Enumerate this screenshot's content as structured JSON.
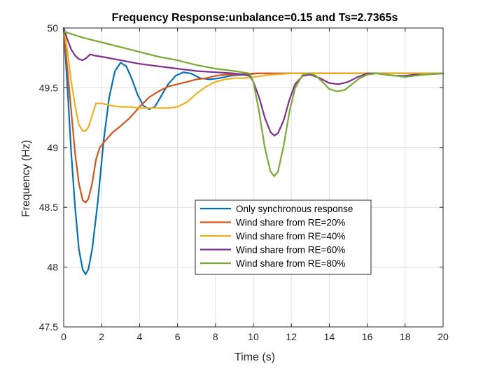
{
  "chart_data": {
    "type": "line",
    "title": "Frequency Response:unbalance=0.15 and Ts=2.7365s",
    "xlabel": "Time (s)",
    "ylabel": "Frequency (Hz)",
    "xlim": [
      0,
      20
    ],
    "ylim": [
      47.5,
      50
    ],
    "xticks": [
      0,
      2,
      4,
      6,
      8,
      10,
      12,
      14,
      16,
      18,
      20
    ],
    "yticks": [
      47.5,
      48,
      48.5,
      49,
      49.5,
      50
    ],
    "xtick_labels": [
      "0",
      "2",
      "4",
      "6",
      "8",
      "10",
      "12",
      "14",
      "16",
      "18",
      "20"
    ],
    "ytick_labels": [
      "47.5",
      "48",
      "48.5",
      "49",
      "49.5",
      "50"
    ],
    "grid": true,
    "legend_position": "center-lower",
    "series": [
      {
        "name": "Only synchronous response",
        "color": "#0072BD",
        "points": [
          [
            0,
            50
          ],
          [
            0.2,
            49.5
          ],
          [
            0.4,
            48.95
          ],
          [
            0.6,
            48.5
          ],
          [
            0.8,
            48.15
          ],
          [
            1.0,
            47.98
          ],
          [
            1.15,
            47.94
          ],
          [
            1.3,
            47.98
          ],
          [
            1.5,
            48.15
          ],
          [
            1.8,
            48.55
          ],
          [
            2.1,
            49.05
          ],
          [
            2.4,
            49.42
          ],
          [
            2.7,
            49.64
          ],
          [
            3.0,
            49.71
          ],
          [
            3.3,
            49.68
          ],
          [
            3.6,
            49.57
          ],
          [
            3.9,
            49.44
          ],
          [
            4.2,
            49.35
          ],
          [
            4.5,
            49.32
          ],
          [
            4.8,
            49.34
          ],
          [
            5.1,
            49.42
          ],
          [
            5.5,
            49.53
          ],
          [
            5.9,
            49.6
          ],
          [
            6.3,
            49.63
          ],
          [
            6.7,
            49.62
          ],
          [
            7.2,
            49.58
          ],
          [
            7.7,
            49.57
          ],
          [
            8.2,
            49.58
          ],
          [
            8.8,
            49.6
          ],
          [
            9.5,
            49.61
          ],
          [
            10.2,
            49.62
          ],
          [
            11,
            49.62
          ],
          [
            12,
            49.62
          ],
          [
            14,
            49.62
          ],
          [
            16,
            49.62
          ],
          [
            18,
            49.62
          ],
          [
            20,
            49.62
          ]
        ]
      },
      {
        "name": "Wind share from RE=20%",
        "color": "#D95319",
        "points": [
          [
            0,
            50
          ],
          [
            0.2,
            49.65
          ],
          [
            0.4,
            49.3
          ],
          [
            0.6,
            48.95
          ],
          [
            0.8,
            48.7
          ],
          [
            1.0,
            48.56
          ],
          [
            1.15,
            48.54
          ],
          [
            1.3,
            48.57
          ],
          [
            1.5,
            48.7
          ],
          [
            1.7,
            48.9
          ],
          [
            1.9,
            49.0
          ],
          [
            2.2,
            49.06
          ],
          [
            2.6,
            49.13
          ],
          [
            3.0,
            49.18
          ],
          [
            3.5,
            49.25
          ],
          [
            4.0,
            49.34
          ],
          [
            4.5,
            49.42
          ],
          [
            5.0,
            49.47
          ],
          [
            5.5,
            49.51
          ],
          [
            6.0,
            49.53
          ],
          [
            6.5,
            49.55
          ],
          [
            7.0,
            49.57
          ],
          [
            7.5,
            49.58
          ],
          [
            8.0,
            49.6
          ],
          [
            8.5,
            49.61
          ],
          [
            9.0,
            49.61
          ],
          [
            10,
            49.62
          ],
          [
            12,
            49.62
          ],
          [
            14,
            49.62
          ],
          [
            16,
            49.62
          ],
          [
            18,
            49.62
          ],
          [
            20,
            49.62
          ]
        ]
      },
      {
        "name": "Wind share from RE=40%",
        "color": "#EDB120",
        "points": [
          [
            0,
            50
          ],
          [
            0.2,
            49.8
          ],
          [
            0.4,
            49.55
          ],
          [
            0.6,
            49.35
          ],
          [
            0.8,
            49.19
          ],
          [
            1.0,
            49.14
          ],
          [
            1.15,
            49.14
          ],
          [
            1.3,
            49.17
          ],
          [
            1.5,
            49.27
          ],
          [
            1.7,
            49.37
          ],
          [
            2.0,
            49.37
          ],
          [
            2.5,
            49.35
          ],
          [
            3.0,
            49.34
          ],
          [
            3.5,
            49.34
          ],
          [
            4.0,
            49.33
          ],
          [
            4.5,
            49.33
          ],
          [
            5.0,
            49.33
          ],
          [
            5.5,
            49.33
          ],
          [
            6.0,
            49.34
          ],
          [
            6.5,
            49.38
          ],
          [
            7.0,
            49.45
          ],
          [
            7.5,
            49.51
          ],
          [
            8.0,
            49.55
          ],
          [
            8.5,
            49.57
          ],
          [
            9.0,
            49.58
          ],
          [
            9.5,
            49.58
          ],
          [
            10,
            49.59
          ],
          [
            10.5,
            49.6
          ],
          [
            11,
            49.61
          ],
          [
            12,
            49.62
          ],
          [
            14,
            49.62
          ],
          [
            16,
            49.62
          ],
          [
            18,
            49.62
          ],
          [
            20,
            49.62
          ]
        ]
      },
      {
        "name": "Wind share from RE=60%",
        "color": "#7E2F8E",
        "points": [
          [
            0,
            50
          ],
          [
            0.2,
            49.9
          ],
          [
            0.4,
            49.82
          ],
          [
            0.6,
            49.77
          ],
          [
            0.8,
            49.74
          ],
          [
            1.0,
            49.73
          ],
          [
            1.2,
            49.75
          ],
          [
            1.4,
            49.78
          ],
          [
            1.6,
            49.77
          ],
          [
            2.0,
            49.76
          ],
          [
            3.0,
            49.73
          ],
          [
            4.0,
            49.7
          ],
          [
            5.0,
            49.68
          ],
          [
            6.0,
            49.66
          ],
          [
            7.0,
            49.64
          ],
          [
            8.0,
            49.63
          ],
          [
            9.0,
            49.62
          ],
          [
            9.5,
            49.61
          ],
          [
            9.8,
            49.6
          ],
          [
            10.0,
            49.55
          ],
          [
            10.3,
            49.42
          ],
          [
            10.6,
            49.25
          ],
          [
            10.9,
            49.13
          ],
          [
            11.1,
            49.1
          ],
          [
            11.3,
            49.12
          ],
          [
            11.6,
            49.23
          ],
          [
            11.9,
            49.4
          ],
          [
            12.2,
            49.53
          ],
          [
            12.6,
            49.6
          ],
          [
            13.0,
            49.61
          ],
          [
            13.5,
            49.58
          ],
          [
            14.0,
            49.54
          ],
          [
            14.5,
            49.53
          ],
          [
            15.0,
            49.55
          ],
          [
            15.5,
            49.59
          ],
          [
            16.0,
            49.62
          ],
          [
            16.5,
            49.62
          ],
          [
            17.0,
            49.61
          ],
          [
            17.5,
            49.6
          ],
          [
            18,
            49.6
          ],
          [
            18.5,
            49.61
          ],
          [
            19,
            49.61
          ],
          [
            20,
            49.62
          ]
        ]
      },
      {
        "name": "Wind share from RE=80%",
        "color": "#77AC30",
        "points": [
          [
            0,
            49.97
          ],
          [
            1,
            49.92
          ],
          [
            2,
            49.88
          ],
          [
            3,
            49.84
          ],
          [
            4,
            49.8
          ],
          [
            5,
            49.76
          ],
          [
            6,
            49.73
          ],
          [
            7,
            49.69
          ],
          [
            8,
            49.66
          ],
          [
            9,
            49.64
          ],
          [
            9.8,
            49.62
          ],
          [
            10.0,
            49.55
          ],
          [
            10.3,
            49.3
          ],
          [
            10.6,
            49.0
          ],
          [
            10.9,
            48.8
          ],
          [
            11.1,
            48.76
          ],
          [
            11.3,
            48.8
          ],
          [
            11.6,
            49.02
          ],
          [
            11.9,
            49.3
          ],
          [
            12.2,
            49.5
          ],
          [
            12.6,
            49.61
          ],
          [
            13.0,
            49.62
          ],
          [
            13.3,
            49.6
          ],
          [
            13.7,
            49.54
          ],
          [
            14.0,
            49.49
          ],
          [
            14.4,
            49.47
          ],
          [
            14.8,
            49.48
          ],
          [
            15.2,
            49.53
          ],
          [
            15.6,
            49.58
          ],
          [
            16.0,
            49.61
          ],
          [
            16.5,
            49.62
          ],
          [
            17.0,
            49.61
          ],
          [
            17.5,
            49.6
          ],
          [
            18,
            49.59
          ],
          [
            18.5,
            49.6
          ],
          [
            19,
            49.61
          ],
          [
            20,
            49.62
          ]
        ]
      }
    ]
  }
}
